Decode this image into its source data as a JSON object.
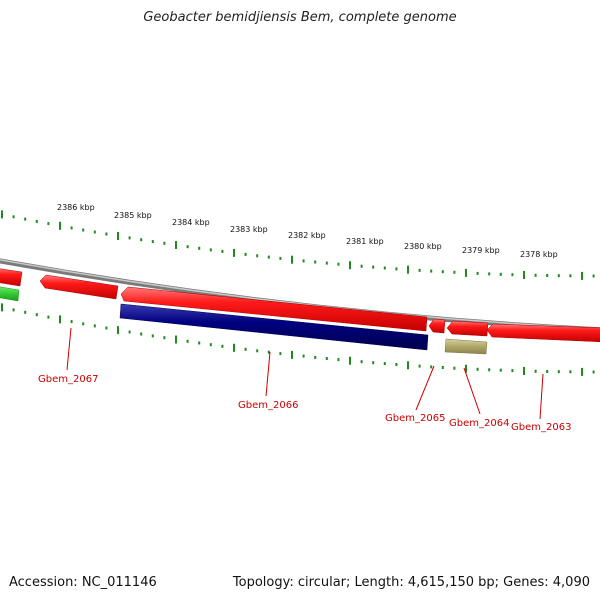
{
  "header": {
    "title": "Geobacter bemidjiensis Bem, complete genome"
  },
  "footer": {
    "accession": "Accession: NC_011146",
    "summary": "Topology: circular; Length: 4,615,150 bp; Genes: 4,090"
  },
  "scale": {
    "labels": [
      "2386 kbp",
      "2385 kbp",
      "2384 kbp",
      "2383 kbp",
      "2382 kbp",
      "2381 kbp",
      "2380 kbp",
      "2379 kbp",
      "2378 kbp"
    ]
  },
  "genes": [
    {
      "name": "Gbem_2067"
    },
    {
      "name": "Gbem_2066"
    },
    {
      "name": "Gbem_2065"
    },
    {
      "name": "Gbem_2064"
    },
    {
      "name": "Gbem_2063"
    }
  ],
  "colors": {
    "backbone": "#8c8c8c",
    "forward_gene": "#ff1a1a",
    "reverse_gene": "#000080",
    "rna_gene": "#a8a060",
    "partial_gene": "#33cc33",
    "ticks": "#228822",
    "labels": "#cc0000"
  }
}
